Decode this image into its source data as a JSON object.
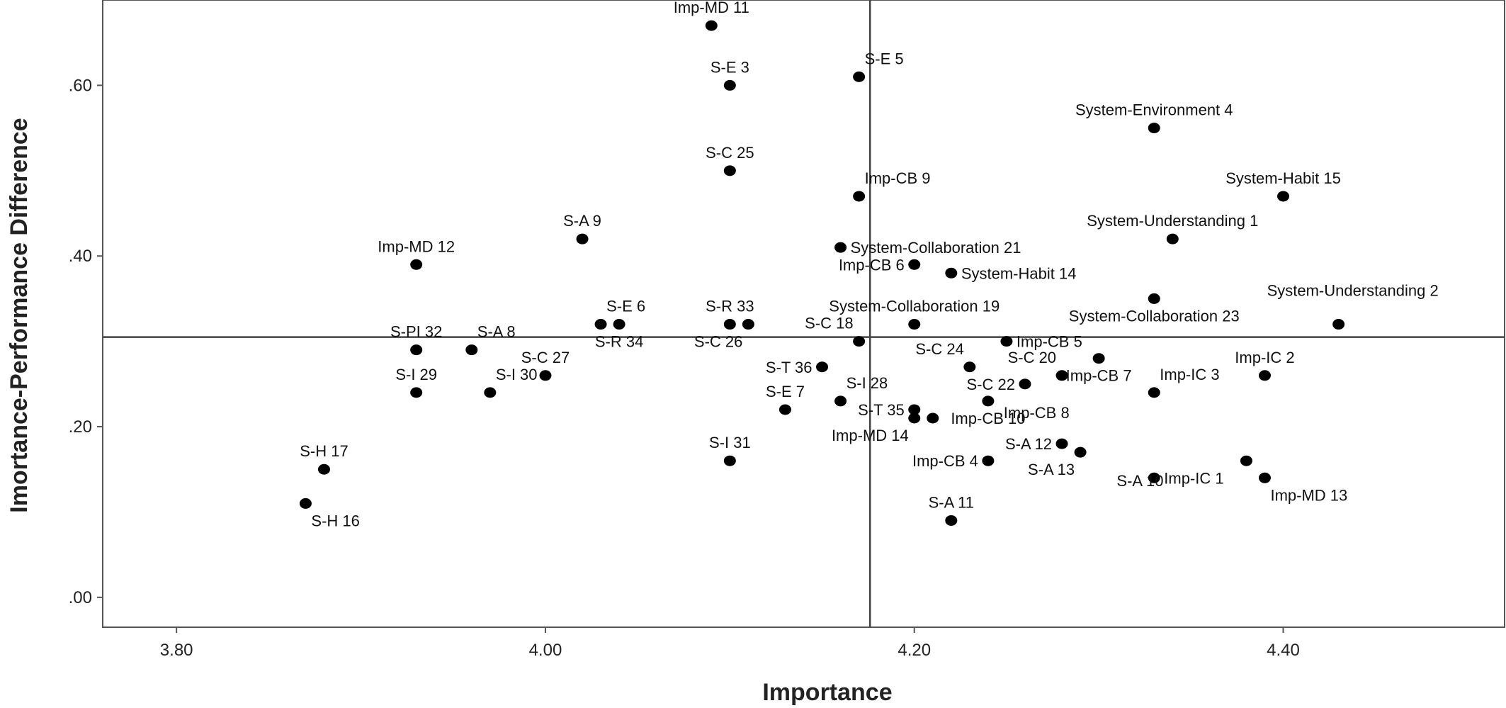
{
  "chart_data": {
    "type": "scatter",
    "xlabel": "Importance",
    "ylabel": "Imortance-Performance Difference",
    "xlim": [
      3.76,
      4.52
    ],
    "ylim": [
      -0.035,
      0.7
    ],
    "xticks": [
      {
        "v": 3.8,
        "label": "3.80"
      },
      {
        "v": 4.0,
        "label": "4.00"
      },
      {
        "v": 4.2,
        "label": "4.20"
      },
      {
        "v": 4.4,
        "label": "4.40"
      }
    ],
    "yticks": [
      {
        "v": 0.0,
        "label": ".00"
      },
      {
        "v": 0.2,
        "label": ".20"
      },
      {
        "v": 0.4,
        "label": ".40"
      },
      {
        "v": 0.6,
        "label": ".60"
      }
    ],
    "reference_lines": {
      "x": 4.176,
      "y": 0.305
    },
    "grid": false,
    "legend": "none",
    "points": [
      {
        "label": "Imp-MD 11",
        "x": 4.09,
        "y": 0.67,
        "pos": "above"
      },
      {
        "label": "S-E 3",
        "x": 4.1,
        "y": 0.6,
        "pos": "above"
      },
      {
        "label": "S-E 5",
        "x": 4.17,
        "y": 0.61,
        "pos": "above-right"
      },
      {
        "label": "System-Environment 4",
        "x": 4.33,
        "y": 0.55,
        "pos": "above"
      },
      {
        "label": "S-C 25",
        "x": 4.1,
        "y": 0.5,
        "pos": "above"
      },
      {
        "label": "Imp-CB 9",
        "x": 4.17,
        "y": 0.47,
        "pos": "above-right"
      },
      {
        "label": "System-Habit 15",
        "x": 4.4,
        "y": 0.47,
        "pos": "above"
      },
      {
        "label": "S-A 9",
        "x": 4.02,
        "y": 0.42,
        "pos": "above"
      },
      {
        "label": "System-Understanding 1",
        "x": 4.34,
        "y": 0.42,
        "pos": "above"
      },
      {
        "label": "System-Collaboration 21",
        "x": 4.16,
        "y": 0.41,
        "pos": "right"
      },
      {
        "label": "Imp-MD 12",
        "x": 3.93,
        "y": 0.39,
        "pos": "above"
      },
      {
        "label": "Imp-CB 6",
        "x": 4.2,
        "y": 0.39,
        "pos": "left"
      },
      {
        "label": "System-Habit 14",
        "x": 4.22,
        "y": 0.38,
        "pos": "right"
      },
      {
        "label": "System-Understanding 2",
        "x": 4.43,
        "y": 0.32,
        "pos": "above-far"
      },
      {
        "label": "System-Collaboration 23",
        "x": 4.33,
        "y": 0.35,
        "pos": "below"
      },
      {
        "label": "S-E 6",
        "x": 4.03,
        "y": 0.32,
        "pos": "above-right"
      },
      {
        "label": "S-R 34",
        "x": 4.04,
        "y": 0.32,
        "pos": "below"
      },
      {
        "label": "S-R 33",
        "x": 4.1,
        "y": 0.32,
        "pos": "above"
      },
      {
        "label": "S-C 26",
        "x": 4.11,
        "y": 0.32,
        "pos": "below-left"
      },
      {
        "label": "System-Collaboration 19",
        "x": 4.2,
        "y": 0.32,
        "pos": "above"
      },
      {
        "label": "S-C 18",
        "x": 4.17,
        "y": 0.3,
        "pos": "above-left"
      },
      {
        "label": "S-PI 32",
        "x": 3.93,
        "y": 0.29,
        "pos": "above"
      },
      {
        "label": "S-A 8",
        "x": 3.96,
        "y": 0.29,
        "pos": "above-right"
      },
      {
        "label": "Imp-CB 5",
        "x": 4.25,
        "y": 0.3,
        "pos": "right"
      },
      {
        "label": "S-C 24",
        "x": 4.23,
        "y": 0.27,
        "pos": "above-left"
      },
      {
        "label": "S-T 36",
        "x": 4.15,
        "y": 0.27,
        "pos": "left"
      },
      {
        "label": "Imp-IC 2",
        "x": 4.39,
        "y": 0.26,
        "pos": "above"
      },
      {
        "label": "S-C 27",
        "x": 4.0,
        "y": 0.26,
        "pos": "above"
      },
      {
        "label": "S-C 20",
        "x": 4.28,
        "y": 0.26,
        "pos": "above-left"
      },
      {
        "label": "S-C 22",
        "x": 4.26,
        "y": 0.25,
        "pos": "left"
      },
      {
        "label": "Imp-CB 7",
        "x": 4.3,
        "y": 0.28,
        "pos": "below"
      },
      {
        "label": "S-I 29",
        "x": 3.93,
        "y": 0.24,
        "pos": "above"
      },
      {
        "label": "S-I 30",
        "x": 3.97,
        "y": 0.24,
        "pos": "above-right"
      },
      {
        "label": "Imp-IC 3",
        "x": 4.33,
        "y": 0.24,
        "pos": "above-right"
      },
      {
        "label": "S-I 28",
        "x": 4.16,
        "y": 0.23,
        "pos": "above-right"
      },
      {
        "label": "S-T 35",
        "x": 4.2,
        "y": 0.22,
        "pos": "left"
      },
      {
        "label": "Imp-CB 10",
        "x": 4.24,
        "y": 0.23,
        "pos": "below"
      },
      {
        "label": "S-E 7",
        "x": 4.13,
        "y": 0.22,
        "pos": "above"
      },
      {
        "label": "Imp-MD 14",
        "x": 4.2,
        "y": 0.21,
        "pos": "below-left"
      },
      {
        "label": "Imp-CB 8",
        "x": 4.21,
        "y": 0.21,
        "pos": "far-right"
      },
      {
        "label": "S-A 12",
        "x": 4.28,
        "y": 0.18,
        "pos": "left"
      },
      {
        "label": "S-A 13",
        "x": 4.29,
        "y": 0.17,
        "pos": "below-left"
      },
      {
        "label": "S-I 31",
        "x": 4.1,
        "y": 0.16,
        "pos": "above"
      },
      {
        "label": "Imp-CB 4",
        "x": 4.24,
        "y": 0.16,
        "pos": "left"
      },
      {
        "label": "S-H 17",
        "x": 3.88,
        "y": 0.15,
        "pos": "above"
      },
      {
        "label": "Imp-IC 1",
        "x": 4.33,
        "y": 0.14,
        "pos": "right"
      },
      {
        "label": "S-A 10",
        "x": 4.38,
        "y": 0.16,
        "pos": "below-far"
      },
      {
        "label": "Imp-MD 13",
        "x": 4.39,
        "y": 0.14,
        "pos": "below-right"
      },
      {
        "label": "S-H 16",
        "x": 3.87,
        "y": 0.11,
        "pos": "below-right"
      },
      {
        "label": "S-A 11",
        "x": 4.22,
        "y": 0.09,
        "pos": "above"
      }
    ]
  }
}
